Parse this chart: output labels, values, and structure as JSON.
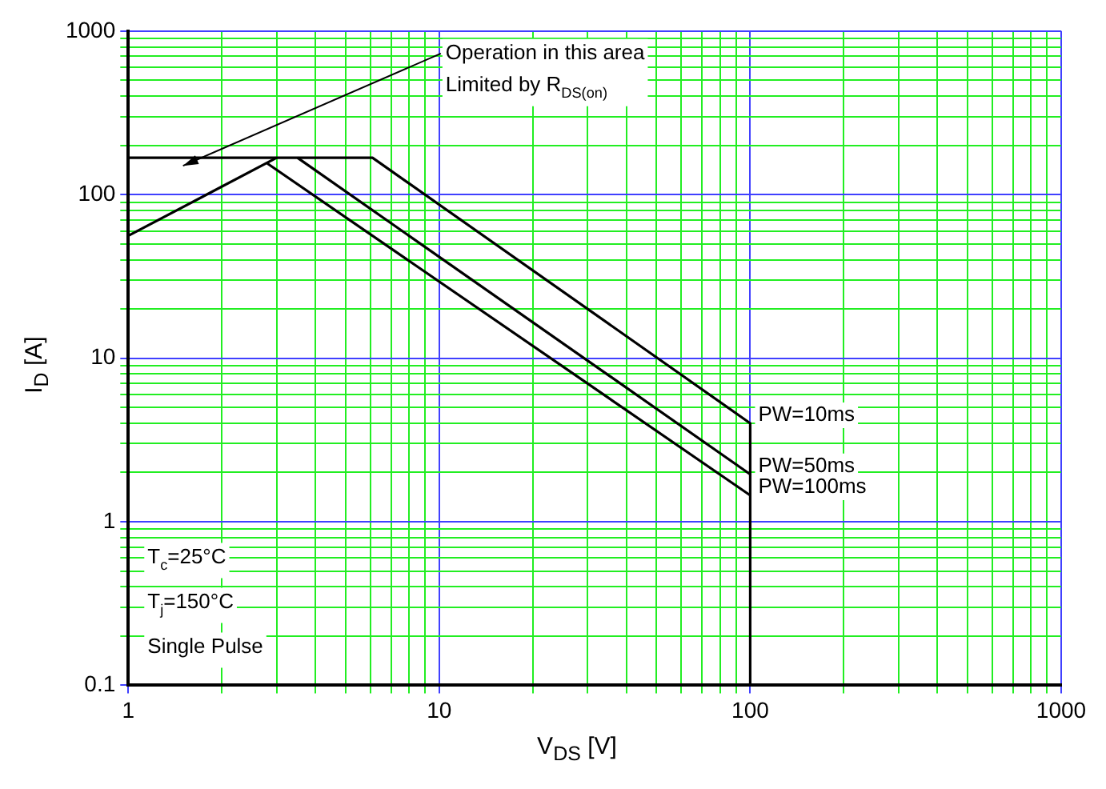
{
  "chart_data": {
    "type": "line",
    "xlabel": "V$_{DS}$ [V]",
    "ylabel": "I$_{D}$ [A]",
    "log": "xy",
    "grid": true,
    "legend": false,
    "marker": "none",
    "line_style": "solid",
    "xlim": [
      1,
      1000
    ],
    "ylim": [
      0.1,
      1000
    ],
    "xticks": [
      1,
      {
        "value": 2,
        "label": null
      },
      {
        "value": 3,
        "label": null
      },
      {
        "value": 4,
        "label": null
      },
      {
        "value": 5,
        "label": null
      },
      {
        "value": 6,
        "label": null
      },
      {
        "value": 7,
        "label": null
      },
      {
        "value": 8,
        "label": null
      },
      {
        "value": 9,
        "label": null
      },
      10,
      {
        "value": 20,
        "label": null
      },
      {
        "value": 30,
        "label": null
      },
      {
        "value": 40,
        "label": null
      },
      {
        "value": 50,
        "label": null
      },
      {
        "value": 60,
        "label": null
      },
      {
        "value": 70,
        "label": null
      },
      {
        "value": 80,
        "label": null
      },
      {
        "value": 90,
        "label": null
      },
      100,
      {
        "value": 200,
        "label": null
      },
      {
        "value": 300,
        "label": null
      },
      {
        "value": 400,
        "label": null
      },
      {
        "value": 500,
        "label": null
      },
      {
        "value": 600,
        "label": null
      },
      {
        "value": 700,
        "label": null
      },
      {
        "value": 800,
        "label": null
      },
      {
        "value": 900,
        "label": null
      },
      1000
    ],
    "yticks": [
      0.1,
      {
        "value": 0.2,
        "label": null
      },
      {
        "value": 0.3,
        "label": null
      },
      {
        "value": 0.4,
        "label": null
      },
      {
        "value": 0.5,
        "label": null
      },
      {
        "value": 0.6,
        "label": null
      },
      {
        "value": 0.7,
        "label": null
      },
      {
        "value": 0.8,
        "label": null
      },
      {
        "value": 0.9,
        "label": null
      },
      1,
      {
        "value": 2,
        "label": null
      },
      {
        "value": 3,
        "label": null
      },
      {
        "value": 4,
        "label": null
      },
      {
        "value": 5,
        "label": null
      },
      {
        "value": 6,
        "label": null
      },
      {
        "value": 7,
        "label": null
      },
      {
        "value": 8,
        "label": null
      },
      {
        "value": 9,
        "label": null
      },
      10,
      {
        "value": 20,
        "label": null
      },
      {
        "value": 30,
        "label": null
      },
      {
        "value": 40,
        "label": null
      },
      {
        "value": 50,
        "label": null
      },
      {
        "value": 60,
        "label": null
      },
      {
        "value": 70,
        "label": null
      },
      {
        "value": 80,
        "label": null
      },
      {
        "value": 90,
        "label": null
      },
      100,
      {
        "value": 200,
        "label": null
      },
      {
        "value": 300,
        "label": null
      },
      {
        "value": 400,
        "label": null
      },
      {
        "value": 500,
        "label": null
      },
      {
        "value": 600,
        "label": null
      },
      {
        "value": 700,
        "label": null
      },
      {
        "value": 800,
        "label": null
      },
      {
        "value": 900,
        "label": null
      },
      1000
    ],
    "series": [
      {
        "name": "PW=10ms",
        "color": "#000000",
        "x": [
          1,
          6.1,
          100,
          100
        ],
        "values": [
          168,
          168,
          4.0,
          0.1
        ]
      },
      {
        "name": "PW=50ms",
        "color": "#000000",
        "x": [
          3.5,
          100
        ],
        "values": [
          168,
          1.95
        ]
      },
      {
        "name": "PW=100ms",
        "color": "#000000",
        "x": [
          2.8,
          100
        ],
        "values": [
          155,
          1.45
        ]
      },
      {
        "color": "#000000",
        "x": [
          1,
          3.0
        ],
        "values": [
          56,
          168
        ]
      }
    ],
    "annotations": [
      {
        "text": "Operation in this area\nLimited by R$_{DS(on)}$",
        "x": 1.5,
        "y": 150
      },
      "T$_{c}$=25°C",
      "T$_{j}$=150°C",
      "Single Pulse"
    ]
  }
}
